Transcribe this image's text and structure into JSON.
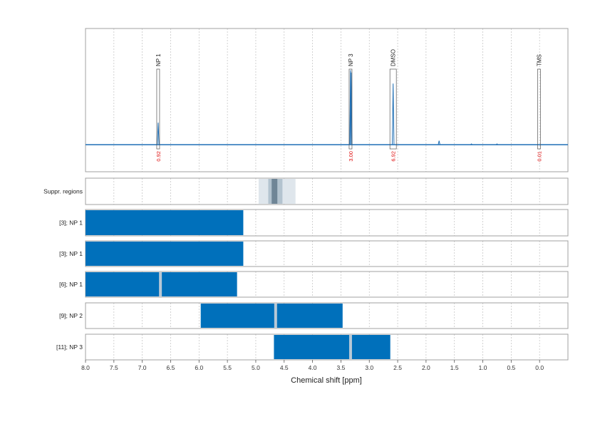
{
  "chart_data": {
    "type": "nmr-spectrum",
    "xlabel": "Chemical shift [ppm]",
    "xlim": [
      8.0,
      -0.5
    ],
    "x_ticks": [
      "8.0",
      "7.5",
      "7.0",
      "6.5",
      "6.0",
      "5.5",
      "5.0",
      "4.5",
      "4.0",
      "3.5",
      "3.0",
      "2.5",
      "2.0",
      "1.5",
      "1.0",
      "0.5",
      "0.0"
    ],
    "grid": true,
    "colors": {
      "spectrum": "#1f6fb5",
      "range_bar": "#0070bb",
      "gap": "#b8c8d6",
      "suppr_light": "#dfe6ec",
      "suppr_mid": "#b3c3cf",
      "suppr_dark": "#6f8596",
      "integral": "#e01010"
    },
    "spectrum_peaks": [
      {
        "ppm": 6.72,
        "height": 0.28
      },
      {
        "ppm": 3.33,
        "height": 0.95
      },
      {
        "ppm": 3.32,
        "height": 0.92
      },
      {
        "ppm": 2.58,
        "height": 0.78
      },
      {
        "ppm": 1.77,
        "height": 0.05
      },
      {
        "ppm": 1.2,
        "height": 0.01
      },
      {
        "ppm": 0.75,
        "height": 0.01
      }
    ],
    "peak_annotations": [
      {
        "label": "NP 1",
        "ppm": 6.72,
        "integral": "0.92"
      },
      {
        "label": "NP 3",
        "ppm": 3.33,
        "integral": "3.00"
      },
      {
        "label": "DMSO",
        "ppm": 2.58,
        "integral": "6.92"
      },
      {
        "label": "TMS",
        "ppm": 0.01,
        "integral": "0.01"
      }
    ],
    "suppression": {
      "label": "Suppr. regions",
      "regions": [
        {
          "from": 4.95,
          "to": 4.3,
          "shade": "light"
        },
        {
          "from": 4.78,
          "to": 4.53,
          "shade": "mid"
        },
        {
          "from": 4.72,
          "to": 4.62,
          "shade": "dark"
        }
      ]
    },
    "range_rows": [
      {
        "label": "[3]; NP 1",
        "ranges": [
          [
            8.0,
            5.22
          ]
        ]
      },
      {
        "label": "[3]; NP 1",
        "ranges": [
          [
            8.0,
            5.22
          ]
        ]
      },
      {
        "label": "[6]; NP 1",
        "ranges": [
          [
            8.0,
            5.33
          ]
        ],
        "gaps": [
          6.68
        ]
      },
      {
        "label": "[9]; NP 2",
        "ranges": [
          [
            5.97,
            3.47
          ]
        ],
        "gaps": [
          4.65
        ]
      },
      {
        "label": "[11]; NP 3",
        "ranges": [
          [
            4.68,
            2.63
          ]
        ],
        "gaps": [
          3.33
        ]
      }
    ]
  }
}
